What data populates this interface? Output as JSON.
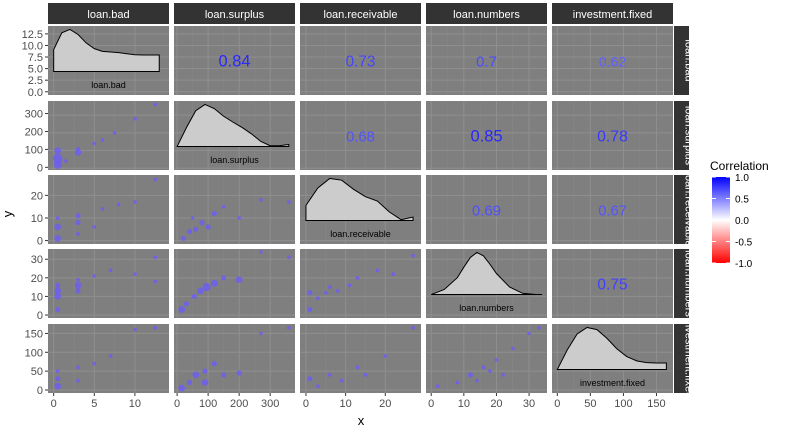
{
  "chart_data": {
    "type": "scatter",
    "subtype": "pairs-correlation-matrix",
    "xlabel": "x",
    "ylabel": "y",
    "variables": [
      "loan.bad",
      "loan.surplus",
      "loan.receivable",
      "loan.numbers",
      "investment.fixed"
    ],
    "row_strip_labels": [
      "loan.bad",
      "loan.surplus",
      "loan.receivable",
      "loan.numbers",
      "investment.fixed"
    ],
    "x_ticks": [
      {
        "min": -0.7,
        "max": 14.2,
        "ticks": [
          0,
          5,
          10
        ],
        "labels": [
          "0",
          "5",
          "10"
        ]
      },
      {
        "min": -10,
        "max": 380,
        "ticks": [
          0,
          100,
          200,
          300
        ],
        "labels": [
          "0",
          "100",
          "200",
          "300"
        ]
      },
      {
        "min": -1.5,
        "max": 29,
        "ticks": [
          0,
          10,
          20
        ],
        "labels": [
          "0",
          "10",
          "20"
        ]
      },
      {
        "min": -1.6,
        "max": 35.5,
        "ticks": [
          0,
          10,
          20,
          30
        ],
        "labels": [
          "0",
          "10",
          "20",
          "30"
        ]
      },
      {
        "min": -8,
        "max": 175,
        "ticks": [
          0,
          50,
          100,
          150
        ],
        "labels": [
          "0",
          "50",
          "100",
          "150"
        ]
      }
    ],
    "y_axis_labeled_panel_ticks": [
      {
        "min": -0.7,
        "max": 14.2,
        "ticks": [
          0,
          2.5,
          5,
          7.5,
          10,
          12.5
        ],
        "labels": [
          "0.0",
          "2.5",
          "5.0",
          "7.5",
          "10.0",
          "12.5"
        ]
      },
      {
        "min": -15,
        "max": 370,
        "ticks": [
          0,
          100,
          200,
          300
        ],
        "labels": [
          "0",
          "100",
          "200",
          "300"
        ]
      },
      {
        "min": -1.5,
        "max": 29,
        "ticks": [
          0,
          10,
          20
        ],
        "labels": [
          "0",
          "10",
          "20"
        ]
      },
      {
        "min": -1.6,
        "max": 35.5,
        "ticks": [
          0,
          10,
          20,
          30
        ],
        "labels": [
          "0",
          "10",
          "20",
          "30"
        ]
      },
      {
        "min": -8,
        "max": 175,
        "ticks": [
          0,
          50,
          100,
          150
        ],
        "labels": [
          "0",
          "50",
          "100",
          "150"
        ]
      }
    ],
    "correlations": [
      {
        "row": 0,
        "col": 1,
        "label": "0.84",
        "value": 0.84
      },
      {
        "row": 0,
        "col": 2,
        "label": "0.73",
        "value": 0.73
      },
      {
        "row": 0,
        "col": 3,
        "label": "0.7",
        "value": 0.7
      },
      {
        "row": 0,
        "col": 4,
        "label": "0.62",
        "value": 0.62
      },
      {
        "row": 1,
        "col": 2,
        "label": "0.68",
        "value": 0.68
      },
      {
        "row": 1,
        "col": 3,
        "label": "0.85",
        "value": 0.85
      },
      {
        "row": 1,
        "col": 4,
        "label": "0.78",
        "value": 0.78
      },
      {
        "row": 2,
        "col": 3,
        "label": "0.69",
        "value": 0.69
      },
      {
        "row": 2,
        "col": 4,
        "label": "0.67",
        "value": 0.67
      },
      {
        "row": 3,
        "col": 4,
        "label": "0.75",
        "value": 0.75
      }
    ],
    "densities": [
      {
        "var": 0,
        "label": "loan.bad",
        "x": [
          0,
          1,
          2,
          3,
          4,
          5,
          6,
          7,
          8,
          9,
          10,
          11,
          12,
          13
        ],
        "density": [
          6.5,
          11.5,
          12.5,
          11.0,
          8.5,
          6.8,
          6.0,
          5.8,
          5.6,
          5.3,
          5.0,
          4.9,
          4.9,
          4.9
        ]
      },
      {
        "var": 1,
        "label": "loan.surplus",
        "x": [
          0,
          30,
          60,
          90,
          120,
          150,
          180,
          210,
          240,
          270,
          300,
          330,
          360
        ],
        "density": [
          0.0,
          0.45,
          0.85,
          1.0,
          0.9,
          0.72,
          0.58,
          0.45,
          0.3,
          0.12,
          0.02,
          0.02,
          0.05
        ]
      },
      {
        "var": 2,
        "label": "loan.receivable",
        "x": [
          0,
          3,
          6,
          9,
          12,
          15,
          18,
          21,
          24,
          27
        ],
        "density": [
          0.35,
          0.75,
          0.97,
          0.93,
          0.72,
          0.55,
          0.45,
          0.2,
          0.02,
          0.08
        ]
      },
      {
        "var": 3,
        "label": "loan.numbers",
        "x": [
          0,
          4,
          8,
          10,
          12,
          14,
          16,
          18,
          20,
          24,
          28,
          32,
          34
        ],
        "density": [
          0.0,
          0.12,
          0.4,
          0.65,
          0.88,
          1.0,
          0.92,
          0.72,
          0.5,
          0.18,
          0.03,
          0.0,
          0.0
        ]
      },
      {
        "var": 4,
        "label": "investment.fixed",
        "x": [
          0,
          15,
          30,
          45,
          60,
          75,
          90,
          105,
          120,
          135,
          150,
          165
        ],
        "density": [
          0.0,
          0.45,
          0.82,
          0.97,
          0.92,
          0.72,
          0.48,
          0.3,
          0.2,
          0.16,
          0.15,
          0.15
        ]
      }
    ],
    "scatter_panels": [
      {
        "row": 1,
        "col": 0,
        "points": [
          {
            "x": 0.5,
            "y": 20,
            "n": 4
          },
          {
            "x": 0.5,
            "y": 55,
            "n": 5
          },
          {
            "x": 0.5,
            "y": 100,
            "n": 3
          },
          {
            "x": 3,
            "y": 90,
            "n": 3
          },
          {
            "x": 3,
            "y": 110,
            "n": 1
          },
          {
            "x": 1.5,
            "y": 40,
            "n": 1
          },
          {
            "x": 5,
            "y": 140,
            "n": 1
          },
          {
            "x": 7.5,
            "y": 200,
            "n": 1
          },
          {
            "x": 10,
            "y": 280,
            "n": 1
          },
          {
            "x": 12.5,
            "y": 360,
            "n": 1
          },
          {
            "x": 6,
            "y": 160,
            "n": 1
          }
        ]
      },
      {
        "row": 2,
        "col": 0,
        "points": [
          {
            "x": 0.5,
            "y": 1,
            "n": 3
          },
          {
            "x": 0.5,
            "y": 6,
            "n": 3
          },
          {
            "x": 0.5,
            "y": 10,
            "n": 1
          },
          {
            "x": 3,
            "y": 8,
            "n": 2
          },
          {
            "x": 3,
            "y": 11,
            "n": 2
          },
          {
            "x": 3,
            "y": 3,
            "n": 1
          },
          {
            "x": 6,
            "y": 14,
            "n": 1
          },
          {
            "x": 8,
            "y": 16,
            "n": 1
          },
          {
            "x": 10,
            "y": 17,
            "n": 1
          },
          {
            "x": 12.5,
            "y": 27,
            "n": 1
          },
          {
            "x": 5,
            "y": 6,
            "n": 1
          }
        ]
      },
      {
        "row": 2,
        "col": 1,
        "points": [
          {
            "x": 20,
            "y": 1,
            "n": 2
          },
          {
            "x": 40,
            "y": 4,
            "n": 2
          },
          {
            "x": 60,
            "y": 5,
            "n": 2
          },
          {
            "x": 80,
            "y": 8,
            "n": 2
          },
          {
            "x": 100,
            "y": 6,
            "n": 2
          },
          {
            "x": 120,
            "y": 12,
            "n": 2
          },
          {
            "x": 150,
            "y": 15,
            "n": 1
          },
          {
            "x": 200,
            "y": 10,
            "n": 1
          },
          {
            "x": 270,
            "y": 18,
            "n": 1
          },
          {
            "x": 360,
            "y": 17,
            "n": 1
          },
          {
            "x": 50,
            "y": 10,
            "n": 1
          }
        ]
      },
      {
        "row": 3,
        "col": 0,
        "points": [
          {
            "x": 0.5,
            "y": 3,
            "n": 2
          },
          {
            "x": 0.5,
            "y": 10,
            "n": 3
          },
          {
            "x": 0.5,
            "y": 13,
            "n": 3
          },
          {
            "x": 0.5,
            "y": 16,
            "n": 2
          },
          {
            "x": 3,
            "y": 13,
            "n": 2
          },
          {
            "x": 3,
            "y": 16,
            "n": 3
          },
          {
            "x": 3,
            "y": 19,
            "n": 1
          },
          {
            "x": 5,
            "y": 21,
            "n": 1
          },
          {
            "x": 7,
            "y": 24,
            "n": 1
          },
          {
            "x": 10,
            "y": 22,
            "n": 1
          },
          {
            "x": 12.5,
            "y": 31,
            "n": 1
          },
          {
            "x": 12.5,
            "y": 18,
            "n": 1
          }
        ]
      },
      {
        "row": 3,
        "col": 1,
        "points": [
          {
            "x": 15,
            "y": 3,
            "n": 3
          },
          {
            "x": 30,
            "y": 6,
            "n": 2
          },
          {
            "x": 55,
            "y": 10,
            "n": 2
          },
          {
            "x": 75,
            "y": 13,
            "n": 3
          },
          {
            "x": 95,
            "y": 15,
            "n": 4
          },
          {
            "x": 120,
            "y": 17,
            "n": 3
          },
          {
            "x": 150,
            "y": 20,
            "n": 2
          },
          {
            "x": 200,
            "y": 19,
            "n": 3
          },
          {
            "x": 270,
            "y": 34,
            "n": 1
          },
          {
            "x": 360,
            "y": 31,
            "n": 1
          }
        ]
      },
      {
        "row": 3,
        "col": 2,
        "points": [
          {
            "x": 1,
            "y": 3,
            "n": 2
          },
          {
            "x": 1,
            "y": 12,
            "n": 2
          },
          {
            "x": 3,
            "y": 9,
            "n": 1
          },
          {
            "x": 5,
            "y": 12,
            "n": 1
          },
          {
            "x": 6,
            "y": 15,
            "n": 1
          },
          {
            "x": 8,
            "y": 13,
            "n": 1
          },
          {
            "x": 11,
            "y": 16,
            "n": 1
          },
          {
            "x": 13,
            "y": 20,
            "n": 1
          },
          {
            "x": 18,
            "y": 24,
            "n": 1
          },
          {
            "x": 22,
            "y": 22,
            "n": 1
          },
          {
            "x": 27,
            "y": 32,
            "n": 1
          }
        ]
      },
      {
        "row": 4,
        "col": 0,
        "points": [
          {
            "x": 0.5,
            "y": 10,
            "n": 3
          },
          {
            "x": 0.5,
            "y": 30,
            "n": 2
          },
          {
            "x": 0.5,
            "y": 50,
            "n": 1
          },
          {
            "x": 3,
            "y": 25,
            "n": 1
          },
          {
            "x": 3,
            "y": 60,
            "n": 1
          },
          {
            "x": 5,
            "y": 70,
            "n": 1
          },
          {
            "x": 7,
            "y": 90,
            "n": 1
          },
          {
            "x": 10,
            "y": 160,
            "n": 1
          },
          {
            "x": 12.5,
            "y": 165,
            "n": 1
          }
        ]
      },
      {
        "row": 4,
        "col": 1,
        "points": [
          {
            "x": 15,
            "y": 5,
            "n": 3
          },
          {
            "x": 40,
            "y": 20,
            "n": 2
          },
          {
            "x": 60,
            "y": 40,
            "n": 3
          },
          {
            "x": 90,
            "y": 20,
            "n": 3
          },
          {
            "x": 90,
            "y": 50,
            "n": 2
          },
          {
            "x": 120,
            "y": 70,
            "n": 2
          },
          {
            "x": 150,
            "y": 40,
            "n": 2
          },
          {
            "x": 200,
            "y": 45,
            "n": 2
          },
          {
            "x": 270,
            "y": 150,
            "n": 1
          },
          {
            "x": 360,
            "y": 165,
            "n": 1
          }
        ]
      },
      {
        "row": 4,
        "col": 2,
        "points": [
          {
            "x": 1,
            "y": 30,
            "n": 2
          },
          {
            "x": 3,
            "y": 10,
            "n": 1
          },
          {
            "x": 6,
            "y": 40,
            "n": 1
          },
          {
            "x": 9,
            "y": 25,
            "n": 1
          },
          {
            "x": 13,
            "y": 60,
            "n": 1
          },
          {
            "x": 15,
            "y": 40,
            "n": 1
          },
          {
            "x": 20,
            "y": 90,
            "n": 1
          },
          {
            "x": 27,
            "y": 165,
            "n": 1
          }
        ]
      },
      {
        "row": 4,
        "col": 3,
        "points": [
          {
            "x": 2,
            "y": 10,
            "n": 1
          },
          {
            "x": 8,
            "y": 20,
            "n": 1
          },
          {
            "x": 12,
            "y": 40,
            "n": 2
          },
          {
            "x": 14,
            "y": 25,
            "n": 1
          },
          {
            "x": 16,
            "y": 60,
            "n": 1
          },
          {
            "x": 18,
            "y": 50,
            "n": 1
          },
          {
            "x": 20,
            "y": 80,
            "n": 1
          },
          {
            "x": 22,
            "y": 40,
            "n": 1
          },
          {
            "x": 25,
            "y": 110,
            "n": 1
          },
          {
            "x": 33,
            "y": 165,
            "n": 1
          },
          {
            "x": 30,
            "y": 150,
            "n": 1
          }
        ]
      }
    ],
    "legend": {
      "title": "Correlation",
      "position": "right",
      "ticks": [
        1.0,
        0.5,
        0.0,
        -0.5,
        -1.0
      ],
      "labels": [
        "1.0",
        "0.5",
        "0.0",
        "-0.5",
        "-1.0"
      ]
    },
    "colors": {
      "panel_bg": "#7f7f7f",
      "grid_major": "#8f8f8f",
      "grid_minor": "#888888",
      "strip_bg": "#333333",
      "strip_text": "#ffffff",
      "density_fill": "#cccccc",
      "low": "#ff0000",
      "mid": "#ffffff",
      "high": "#0000ff",
      "point": "#6a5aff"
    },
    "grid": true
  }
}
